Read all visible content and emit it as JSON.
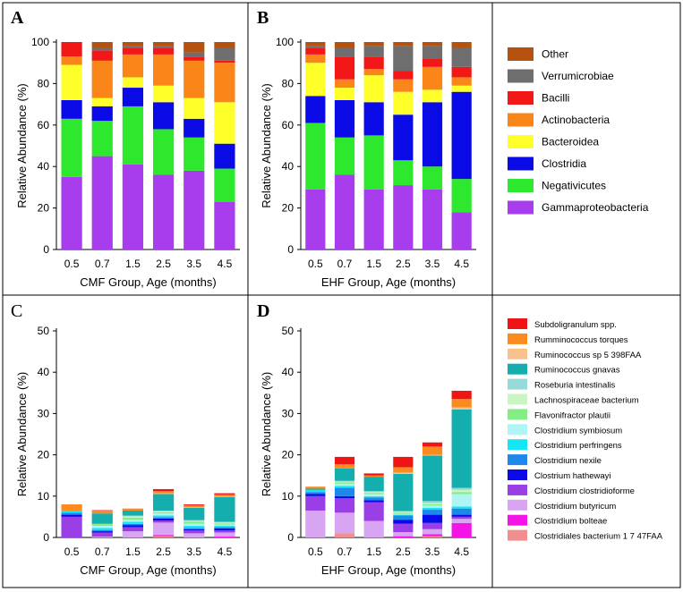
{
  "colors": {
    "Other": "#b5520f",
    "Verrumicrobiae": "#6e6e6e",
    "Bacilli": "#f21818",
    "Actinobacteria": "#fa861a",
    "Bacteroidea": "#ffff2a",
    "Clostridia": "#0a0ae6",
    "Negativicutes": "#2ee82e",
    "Gammaproteobacteria": "#a83dee",
    "Subdoligranulum spp.": "#f01515",
    "Rumminococcus torques": "#fb8a1f",
    "Ruminococcus sp 5 398FAA": "#f9c28c",
    "Ruminococcus gnavas": "#14aeae",
    "Roseburia intestinalis": "#96dada",
    "Lachnospiraceae bacterium": "#c8f5c2",
    "Flavonifractor plautii": "#83ee83",
    "Clostridium symbiosum": "#aff5f5",
    "Clostridium perfringens": "#14e6f5",
    "Clostridium nexile": "#1e87ec",
    "Clostrium hathewayi": "#0a0ae6",
    "Clostridium clostridioforme": "#9a3ee6",
    "Clostridium butyricum": "#d7a5f2",
    "Clostridium bolteae": "#f414e6",
    "Clostridiales bacterium 1 7 47FAA": "#f28e8e"
  },
  "chart_data": [
    {
      "panel": "A",
      "type": "bar",
      "stacked": true,
      "categories": [
        "0.5",
        "0.7",
        "1.5",
        "2.5",
        "3.5",
        "4.5"
      ],
      "xlabel": "CMF Group, Age (months)",
      "ylabel": "Relative Abundance (%)",
      "ylim": [
        0,
        100
      ],
      "yticks": [
        "0",
        "20",
        "40",
        "60",
        "80",
        "100"
      ],
      "series": [
        {
          "name": "Gammaproteobacteria",
          "values": [
            35,
            45,
            41,
            36,
            38,
            23
          ]
        },
        {
          "name": "Negativicutes",
          "values": [
            28,
            17,
            28,
            22,
            16,
            16
          ]
        },
        {
          "name": "Clostridia",
          "values": [
            9,
            7,
            9,
            13,
            9,
            12
          ]
        },
        {
          "name": "Bacteroidea",
          "values": [
            17,
            4,
            5,
            8,
            10,
            20
          ]
        },
        {
          "name": "Actinobacteria",
          "values": [
            4,
            18,
            11,
            15,
            18,
            19
          ]
        },
        {
          "name": "Bacilli",
          "values": [
            7,
            5,
            3,
            3,
            2,
            1
          ]
        },
        {
          "name": "Verrumicrobiae",
          "values": [
            0,
            1,
            1,
            1,
            2,
            6
          ]
        },
        {
          "name": "Other",
          "values": [
            0,
            3,
            2,
            2,
            5,
            3
          ]
        }
      ]
    },
    {
      "panel": "B",
      "type": "bar",
      "stacked": true,
      "categories": [
        "0.5",
        "0.7",
        "1.5",
        "2.5",
        "3.5",
        "4.5"
      ],
      "xlabel": "EHF Group, Age (months)",
      "ylabel": "Relative Abundance (%)",
      "ylim": [
        0,
        100
      ],
      "yticks": [
        "0",
        "20",
        "40",
        "60",
        "80",
        "100"
      ],
      "legend": {
        "placement": "right",
        "entries": [
          "Other",
          "Verrumicrobiae",
          "Bacilli",
          "Actinobacteria",
          "Bacteroidea",
          "Clostridia",
          "Negativicutes",
          "Gammaproteobacteria"
        ]
      },
      "series": [
        {
          "name": "Gammaproteobacteria",
          "values": [
            29,
            36,
            29,
            31,
            29,
            18
          ]
        },
        {
          "name": "Negativicutes",
          "values": [
            32,
            18,
            26,
            12,
            11,
            16
          ]
        },
        {
          "name": "Clostridia",
          "values": [
            13,
            18,
            16,
            22,
            31,
            42
          ]
        },
        {
          "name": "Bacteroidea",
          "values": [
            16,
            6,
            13,
            11,
            6,
            3
          ]
        },
        {
          "name": "Actinobacteria",
          "values": [
            4,
            4,
            3,
            6,
            11,
            4
          ]
        },
        {
          "name": "Bacilli",
          "values": [
            3,
            11,
            6,
            4,
            4,
            5
          ]
        },
        {
          "name": "Verrumicrobiae",
          "values": [
            1,
            4,
            5,
            12,
            6,
            9
          ]
        },
        {
          "name": "Other",
          "values": [
            2,
            3,
            2,
            2,
            2,
            3
          ]
        }
      ]
    },
    {
      "panel": "C",
      "type": "bar",
      "stacked": true,
      "categories": [
        "0.5",
        "0.7",
        "1.5",
        "2.5",
        "3.5",
        "4.5"
      ],
      "xlabel": "CMF Group, Age (months)",
      "ylabel": "Relative Abundance (%)",
      "ylim": [
        0,
        50
      ],
      "yticks": [
        "0",
        "10",
        "20",
        "30",
        "40",
        "50"
      ],
      "series": [
        {
          "name": "Clostridiales bacterium 1 7 47FAA",
          "values": [
            0,
            0,
            0,
            0.3,
            0,
            0
          ]
        },
        {
          "name": "Clostridium bolteae",
          "values": [
            0,
            0,
            0,
            0.3,
            0,
            0.2
          ]
        },
        {
          "name": "Clostridium butyricum",
          "values": [
            0,
            0.2,
            1.5,
            3,
            1,
            1
          ]
        },
        {
          "name": "Clostridium clostridioforme",
          "values": [
            5,
            1,
            1,
            0.5,
            0.7,
            0.5
          ]
        },
        {
          "name": "Clostrium hathewayi",
          "values": [
            0.5,
            0.3,
            0.5,
            0.5,
            0.3,
            0.5
          ]
        },
        {
          "name": "Clostridium nexile",
          "values": [
            0.5,
            0.3,
            0.3,
            0.3,
            0.3,
            0.3
          ]
        },
        {
          "name": "Clostridium perfringens",
          "values": [
            0.5,
            0.5,
            0.5,
            0.4,
            0.5,
            0.3
          ]
        },
        {
          "name": "Clostridium symbiosum",
          "values": [
            0,
            0.5,
            0.5,
            0.5,
            0.5,
            0.3
          ]
        },
        {
          "name": "Flavonifractor plautii",
          "values": [
            0,
            0.5,
            0.5,
            0.3,
            0.5,
            0.3
          ]
        },
        {
          "name": "Lachnospiraceae bacterium",
          "values": [
            0,
            0,
            0.3,
            0.2,
            0.2,
            0.2
          ]
        },
        {
          "name": "Roseburia intestinalis",
          "values": [
            0,
            0,
            0.2,
            0.2,
            0.2,
            0.2
          ]
        },
        {
          "name": "Ruminococcus gnavas",
          "values": [
            0,
            2.5,
            1.2,
            4,
            3,
            6
          ]
        },
        {
          "name": "Ruminococcus sp 5 398FAA",
          "values": [
            0,
            0,
            0,
            0.2,
            0.1,
            0.1
          ]
        },
        {
          "name": "Rumminococcus torques",
          "values": [
            1.5,
            0.7,
            0.5,
            0.5,
            0.5,
            0.5
          ]
        },
        {
          "name": "Subdoligranulum spp.",
          "values": [
            0,
            0.1,
            0,
            0.5,
            0.2,
            0.3
          ]
        }
      ]
    },
    {
      "panel": "D",
      "type": "bar",
      "stacked": true,
      "categories": [
        "0.5",
        "0.7",
        "1.5",
        "2.5",
        "3.5",
        "4.5"
      ],
      "xlabel": "EHF Group, Age (months)",
      "ylabel": "Relative Abundance (%)",
      "ylim": [
        0,
        50
      ],
      "yticks": [
        "0",
        "10",
        "20",
        "30",
        "40",
        "50"
      ],
      "legend": {
        "placement": "right",
        "entries": [
          "Subdoligranulum spp.",
          "Rumminococcus torques",
          "Ruminococcus sp 5 398FAA",
          "Ruminococcus gnavas",
          "Roseburia intestinalis",
          "Lachnospiraceae bacterium",
          "Flavonifractor plautii",
          "Clostridium symbiosum",
          "Clostridium perfringens",
          "Clostridium nexile",
          "Clostrium hathewayi",
          "Clostridium clostridioforme",
          "Clostridium butyricum",
          "Clostridium bolteae",
          "Clostridiales bacterium 1 7 47FAA"
        ]
      },
      "series": [
        {
          "name": "Clostridiales bacterium 1 7 47FAA",
          "values": [
            0,
            1,
            0,
            0,
            0.3,
            0
          ]
        },
        {
          "name": "Clostridium bolteae",
          "values": [
            0,
            0,
            0,
            0.3,
            0.5,
            3.5
          ]
        },
        {
          "name": "Clostridium butyricum",
          "values": [
            6.5,
            5,
            4,
            1,
            1.2,
            1
          ]
        },
        {
          "name": "Clostridium clostridioforme",
          "values": [
            3.5,
            3.5,
            4.5,
            2,
            1.5,
            0.5
          ]
        },
        {
          "name": "Clostrium hathewayi",
          "values": [
            0.5,
            0.5,
            0.5,
            1,
            2,
            0.5
          ]
        },
        {
          "name": "Clostridium nexile",
          "values": [
            0.5,
            2,
            0.7,
            1,
            1.2,
            1.5
          ]
        },
        {
          "name": "Clostridium perfringens",
          "values": [
            0.5,
            0.5,
            0.3,
            0.2,
            0.5,
            0.5
          ]
        },
        {
          "name": "Clostridium symbiosum",
          "values": [
            0,
            0.5,
            0.5,
            0.2,
            0.5,
            3
          ]
        },
        {
          "name": "Flavonifractor plautii",
          "values": [
            0,
            0.3,
            0.3,
            0.3,
            0.3,
            0.5
          ]
        },
        {
          "name": "Lachnospiraceae bacterium",
          "values": [
            0,
            0.2,
            0.2,
            0.2,
            0.3,
            0.5
          ]
        },
        {
          "name": "Roseburia intestinalis",
          "values": [
            0,
            0.2,
            0.2,
            0.2,
            0.5,
            0.5
          ]
        },
        {
          "name": "Ruminococcus gnavas",
          "values": [
            0.3,
            3,
            3.5,
            9,
            11,
            19
          ]
        },
        {
          "name": "Ruminococcus sp 5 398FAA",
          "values": [
            0,
            0,
            0,
            0.3,
            0.2,
            0.5
          ]
        },
        {
          "name": "Rumminococcus torques",
          "values": [
            0.5,
            1,
            0.3,
            1.3,
            2,
            2
          ]
        },
        {
          "name": "Subdoligranulum spp.",
          "values": [
            0,
            1.8,
            0.5,
            2.5,
            1,
            2
          ]
        }
      ]
    }
  ],
  "labels": {
    "A": "A",
    "B": "B",
    "C": "C",
    "D": "D"
  }
}
